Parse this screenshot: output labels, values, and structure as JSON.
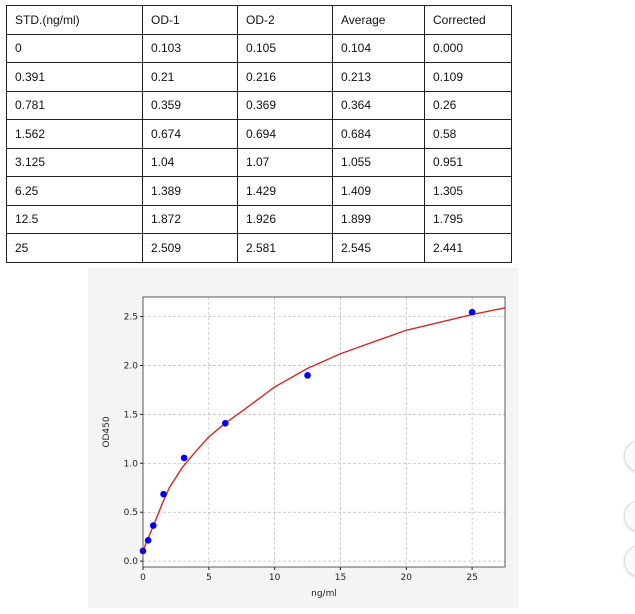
{
  "table": {
    "headers": [
      "STD.(ng/ml)",
      "OD-1",
      "OD-2",
      "Average",
      "Corrected"
    ],
    "rows": [
      [
        "0",
        "0.103",
        "0.105",
        "0.104",
        "0.000"
      ],
      [
        "0.391",
        "0.21",
        "0.216",
        "0.213",
        "0.109"
      ],
      [
        "0.781",
        "0.359",
        "0.369",
        "0.364",
        "0.26"
      ],
      [
        "1.562",
        "0.674",
        "0.694",
        "0.684",
        "0.58"
      ],
      [
        "3.125",
        "1.04",
        "1.07",
        "1.055",
        "0.951"
      ],
      [
        "6.25",
        "1.389",
        "1.429",
        "1.409",
        "1.305"
      ],
      [
        "12.5",
        "1.872",
        "1.926",
        "1.899",
        "1.795"
      ],
      [
        "25",
        "2.509",
        "2.581",
        "2.545",
        "2.441"
      ]
    ]
  },
  "chart_data": {
    "type": "scatter",
    "xlabel": "ng/ml",
    "ylabel": "OD450",
    "xlim": [
      0,
      27.5
    ],
    "ylim": [
      -0.06,
      2.7
    ],
    "xticks": [
      0,
      5,
      10,
      15,
      20,
      25
    ],
    "yticks": [
      0.0,
      0.5,
      1.0,
      1.5,
      2.0,
      2.5
    ],
    "xtick_labels": [
      "0",
      "5",
      "10",
      "15",
      "20",
      "25"
    ],
    "ytick_labels": [
      "0.0",
      "0.5",
      "1.0",
      "1.5",
      "2.0",
      "2.5"
    ],
    "grid": true,
    "points": {
      "x": [
        0,
        0.391,
        0.781,
        1.562,
        3.125,
        6.25,
        12.5,
        25
      ],
      "y": [
        0.104,
        0.213,
        0.364,
        0.684,
        1.055,
        1.409,
        1.899,
        2.545
      ],
      "color": "#0000ee"
    },
    "fit_curve": {
      "x": [
        0,
        0.25,
        0.5,
        1,
        1.5,
        2,
        3,
        4,
        5,
        6.25,
        7.5,
        10,
        12.5,
        15,
        20,
        25,
        27.5
      ],
      "y": [
        0.1,
        0.19,
        0.27,
        0.43,
        0.6,
        0.75,
        0.96,
        1.12,
        1.27,
        1.41,
        1.53,
        1.78,
        1.97,
        2.12,
        2.36,
        2.52,
        2.59
      ],
      "color": "#d62728"
    }
  },
  "side_buttons": 3
}
